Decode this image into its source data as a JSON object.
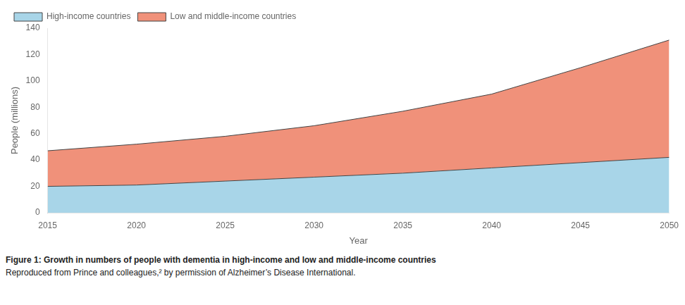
{
  "chart_data": {
    "type": "area",
    "title": "Figure 1: Growth in numbers of people with dementia in high-income and low and middle-income countries",
    "subtitle": "Reproduced from Prince and colleagues,² by permission of Alzheimer’s Disease International.",
    "x": [
      2015,
      2020,
      2025,
      2030,
      2035,
      2040,
      2045,
      2050
    ],
    "series": [
      {
        "name": "High-income countries",
        "color": "#a8d5e8",
        "values": [
          20,
          21,
          24,
          27,
          30,
          34,
          38,
          42
        ]
      },
      {
        "name": "Low and middle-income countries",
        "color": "#f0917a",
        "values": [
          27,
          31,
          34,
          39,
          47,
          56,
          72,
          89
        ]
      }
    ],
    "stacked": true,
    "xlabel": "Year",
    "ylabel": "People (millions)",
    "xlim": [
      2015,
      2050
    ],
    "xticks": [
      2015,
      2020,
      2025,
      2030,
      2035,
      2040,
      2045,
      2050
    ],
    "ylim": [
      0,
      140
    ],
    "yticks": [
      0,
      20,
      40,
      60,
      80,
      100,
      120,
      140
    ],
    "legend": "upper left",
    "grid": false
  }
}
